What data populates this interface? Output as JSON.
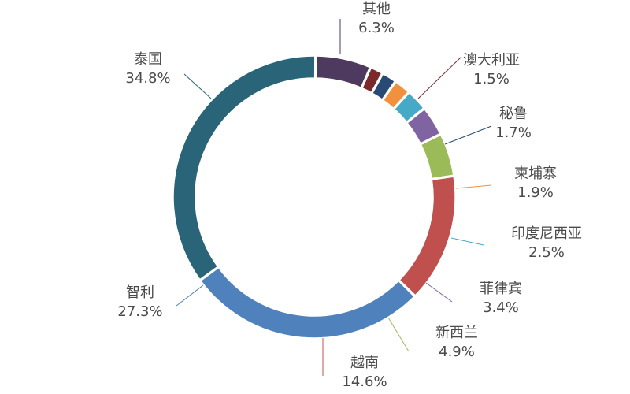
{
  "chart_data": {
    "type": "pie",
    "title": "",
    "slices": [
      {
        "label": "其他",
        "value": 6.3,
        "display": "6.3%",
        "color": "#4e3a5e"
      },
      {
        "label": "澳大利亚",
        "value": 1.5,
        "display": "1.5%",
        "color": "#7a2a2a"
      },
      {
        "label": "秘鲁",
        "value": 1.7,
        "display": "1.7%",
        "color": "#2a4a76"
      },
      {
        "label": "柬埔寨",
        "value": 1.9,
        "display": "1.9%",
        "color": "#f2913d"
      },
      {
        "label": "印度尼西亚",
        "value": 2.5,
        "display": "2.5%",
        "color": "#46aac6"
      },
      {
        "label": "菲律宾",
        "value": 3.4,
        "display": "3.4%",
        "color": "#8064a2"
      },
      {
        "label": "新西兰",
        "value": 4.9,
        "display": "4.9%",
        "color": "#9bbb59"
      },
      {
        "label": "越南",
        "value": 14.6,
        "display": "14.6%",
        "color": "#c0504d"
      },
      {
        "label": "智利",
        "value": 27.3,
        "display": "27.3%",
        "color": "#4f81bd"
      },
      {
        "label": "泰国",
        "value": 34.8,
        "display": "34.8%",
        "color": "#2a6478"
      }
    ]
  }
}
